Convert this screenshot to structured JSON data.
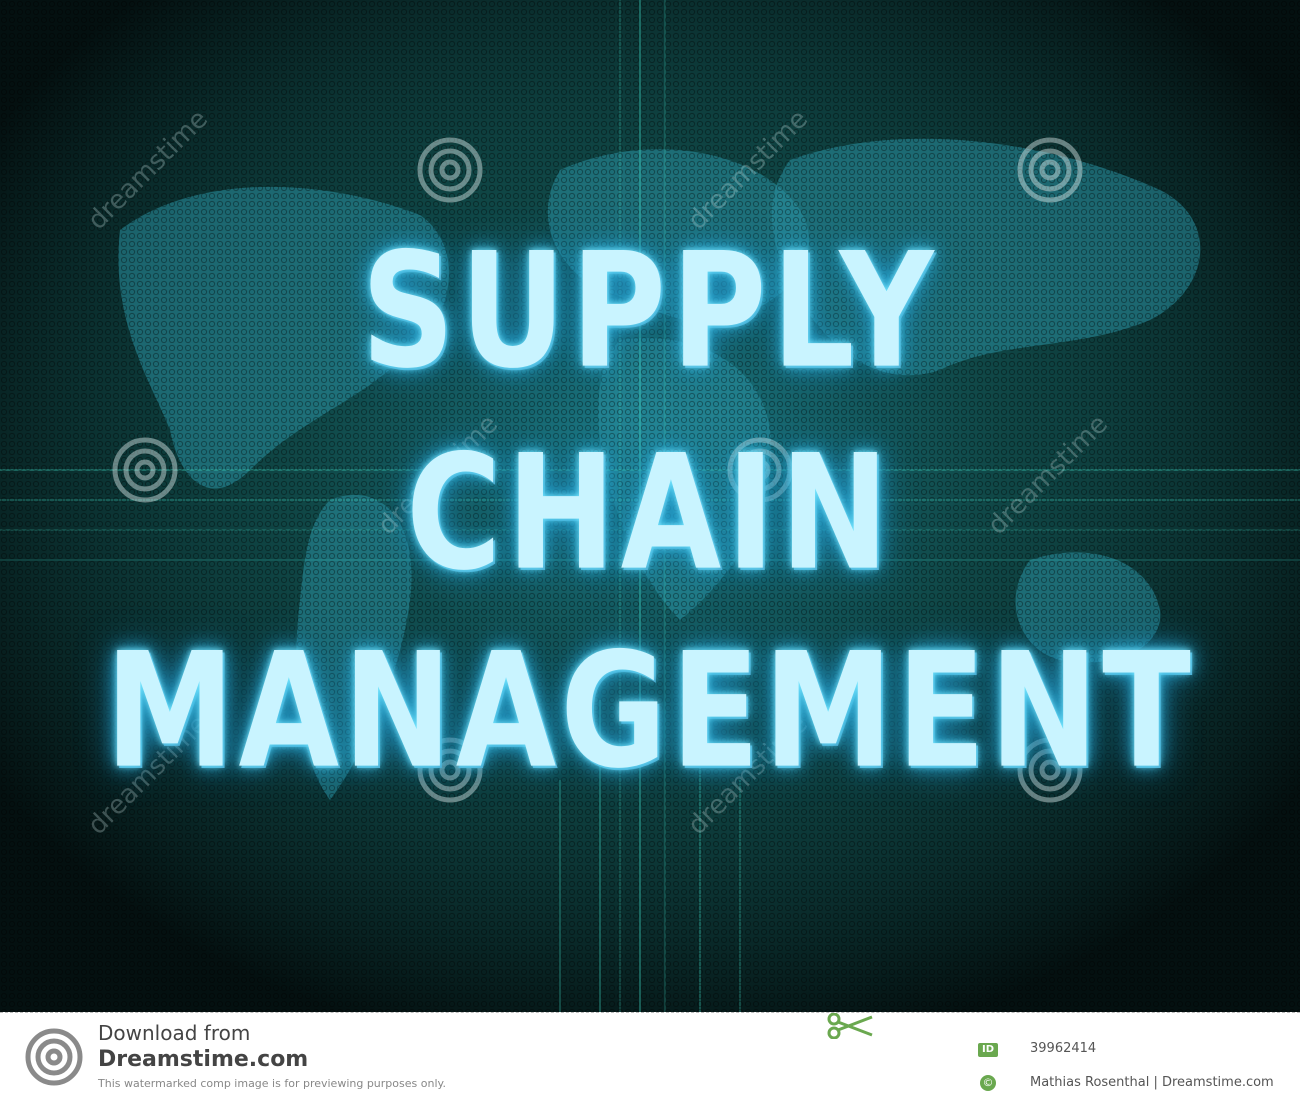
{
  "headline": {
    "line1": "SUPPLY",
    "line2": "CHAIN",
    "line3": "MANAGEMENT"
  },
  "watermark": {
    "text": "dreamstime",
    "icon": "spiral-logo-icon"
  },
  "footer": {
    "download_from": "Download from",
    "site": "Dreamstime.com",
    "notice": "This watermarked comp image is for previewing purposes only.",
    "id_label": "ID",
    "image_id": "39962414",
    "copyright_symbol": "©",
    "credit": "Mathias Rosenthal | Dreamstime.com",
    "icons": [
      "spiral-logo-icon",
      "scissors-icon"
    ],
    "colors": {
      "brand_green": "#6aa84f",
      "logo_gray": "#8a8a8a"
    }
  },
  "colors": {
    "background": "#05110f",
    "text_glow": "#2fb8e6",
    "text_fill": "#c9f4ff",
    "map_teal": "#1f8a8c"
  }
}
